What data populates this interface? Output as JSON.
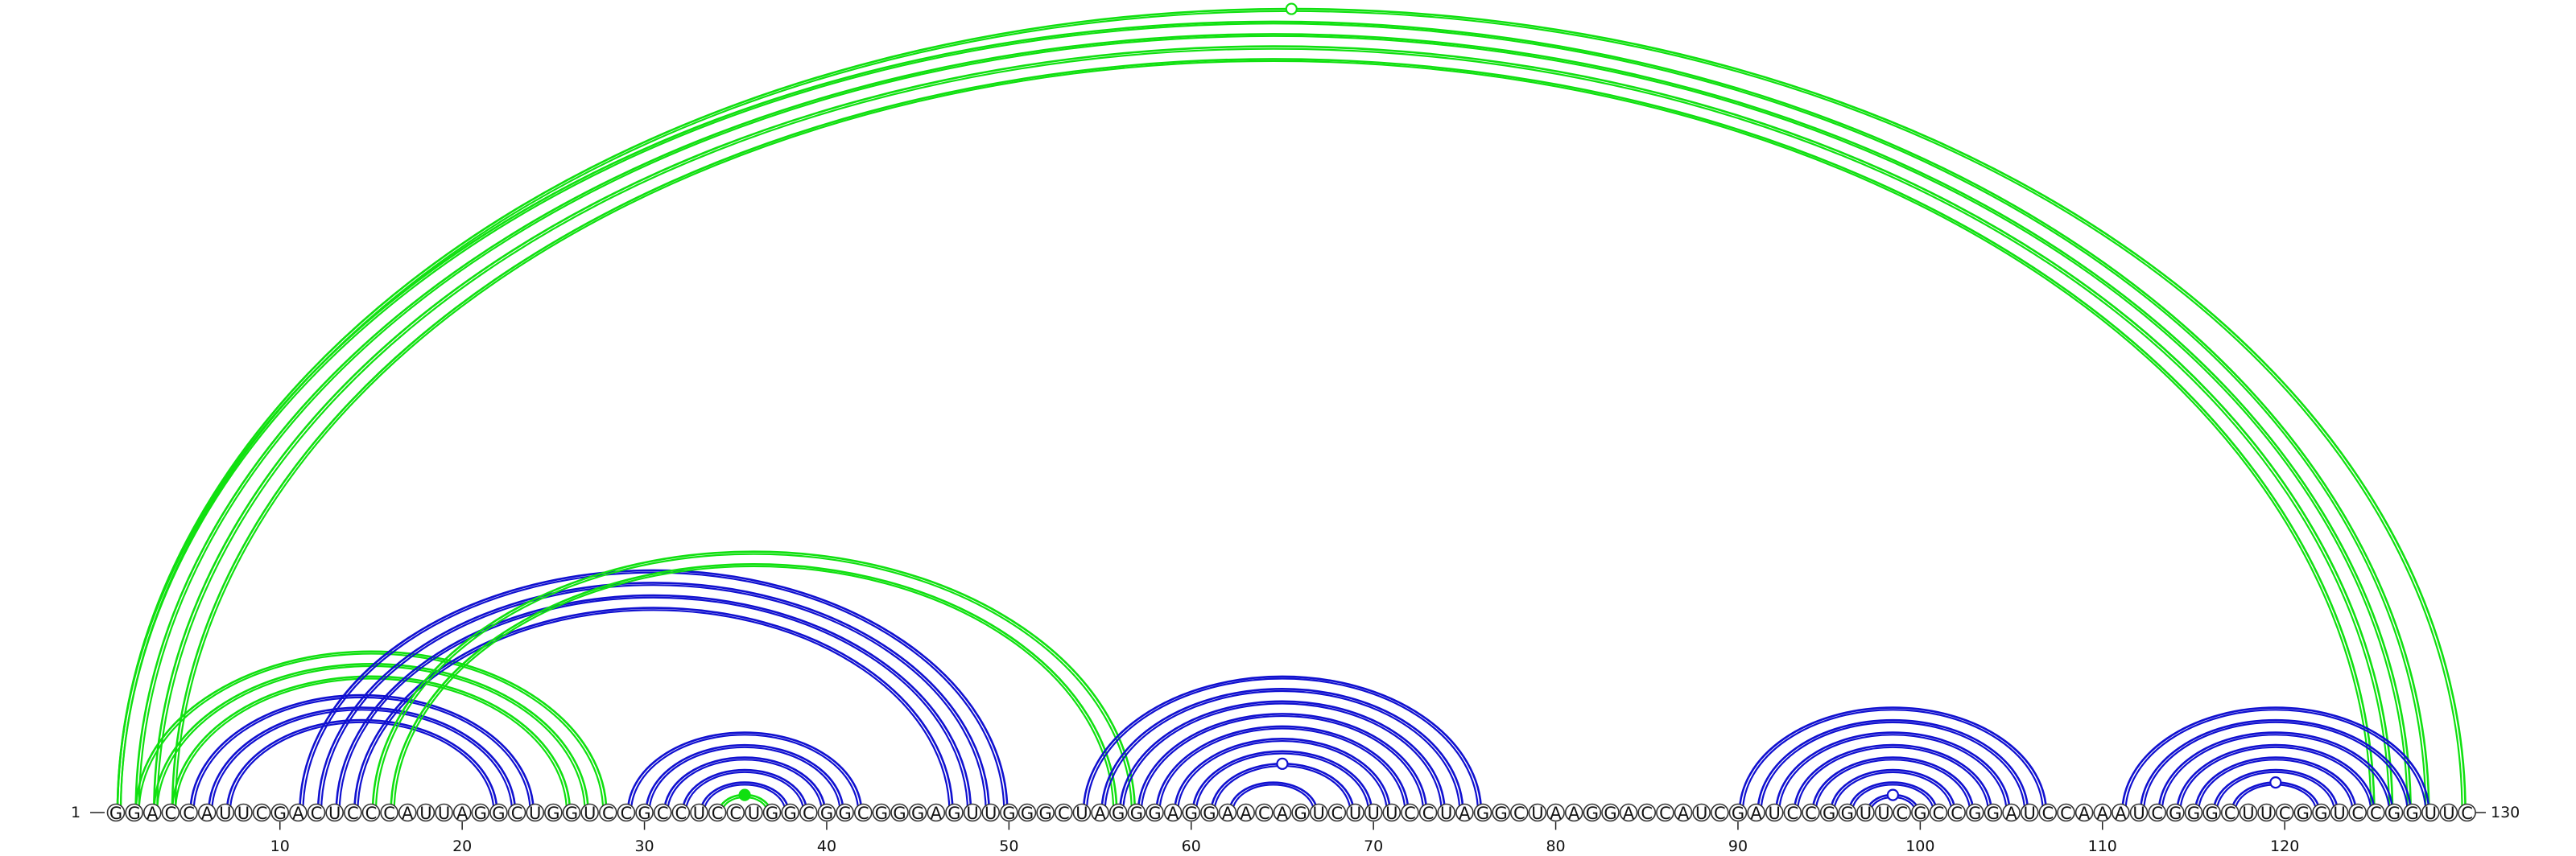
{
  "sequence": "GGACCAUUCGACUCCCAUUAGGCUGGUCCGCCUCCUGGCGGCGGGAGUUGGGCUAGGGAGGAACAGUCUUUCCUAGGCUAAGGACCAUCGAUCCGGUUCGCCGGAUCCAAAUCGGGCUUCGGUCCGGUUC",
  "start_label": "1",
  "end_label": "130",
  "ticks": [
    "10",
    "20",
    "30",
    "40",
    "50",
    "60",
    "70",
    "80",
    "90",
    "100",
    "110",
    "120"
  ],
  "colors": {
    "blue_helices": "#1010d0",
    "green_helices": "#10e010"
  },
  "helices": [
    {
      "color": "green",
      "pairs": [
        [
          1,
          128
        ],
        [
          2,
          127
        ],
        [
          3,
          126
        ],
        [
          4,
          125
        ]
      ],
      "marker": null
    },
    {
      "color": "green",
      "pairs": [
        [
          1,
          130
        ]
      ],
      "marker": "open"
    },
    {
      "color": "green",
      "pairs": [
        [
          2,
          28
        ],
        [
          3,
          27
        ],
        [
          4,
          26
        ]
      ],
      "marker": null
    },
    {
      "color": "blue",
      "pairs": [
        [
          5,
          24
        ],
        [
          6,
          23
        ],
        [
          7,
          22
        ]
      ],
      "marker": null
    },
    {
      "color": "blue",
      "pairs": [
        [
          11,
          50
        ],
        [
          12,
          49
        ],
        [
          13,
          48
        ],
        [
          14,
          47
        ]
      ],
      "marker": null
    },
    {
      "color": "green",
      "pairs": [
        [
          15,
          57
        ],
        [
          16,
          56
        ]
      ],
      "marker": null
    },
    {
      "color": "blue",
      "pairs": [
        [
          29,
          42
        ],
        [
          30,
          41
        ],
        [
          31,
          40
        ],
        [
          32,
          39
        ],
        [
          33,
          38
        ]
      ],
      "marker": null
    },
    {
      "color": "green",
      "pairs": [
        [
          34,
          37
        ]
      ],
      "marker": "filled"
    },
    {
      "color": "blue",
      "pairs": [
        [
          54,
          76
        ],
        [
          55,
          75
        ],
        [
          56,
          74
        ]
      ],
      "marker": null
    },
    {
      "color": "blue",
      "pairs": [
        [
          57,
          73
        ],
        [
          58,
          72
        ],
        [
          59,
          71
        ],
        [
          60,
          70
        ],
        [
          61,
          69
        ]
      ],
      "marker": "open"
    },
    {
      "color": "blue",
      "pairs": [
        [
          62,
          67
        ]
      ],
      "marker": null
    },
    {
      "color": "blue",
      "pairs": [
        [
          90,
          107
        ],
        [
          91,
          106
        ],
        [
          92,
          105
        ],
        [
          93,
          104
        ]
      ],
      "marker": null
    },
    {
      "color": "blue",
      "pairs": [
        [
          94,
          103
        ],
        [
          95,
          102
        ],
        [
          96,
          101
        ],
        [
          97,
          100
        ]
      ],
      "marker": "open"
    },
    {
      "color": "blue",
      "pairs": [
        [
          111,
          128
        ],
        [
          112,
          127
        ]
      ],
      "marker": null
    },
    {
      "color": "blue",
      "pairs": [
        [
          113,
          126
        ],
        [
          114,
          125
        ],
        [
          115,
          124
        ],
        [
          116,
          123
        ],
        [
          117,
          122
        ]
      ],
      "marker": "open"
    }
  ]
}
